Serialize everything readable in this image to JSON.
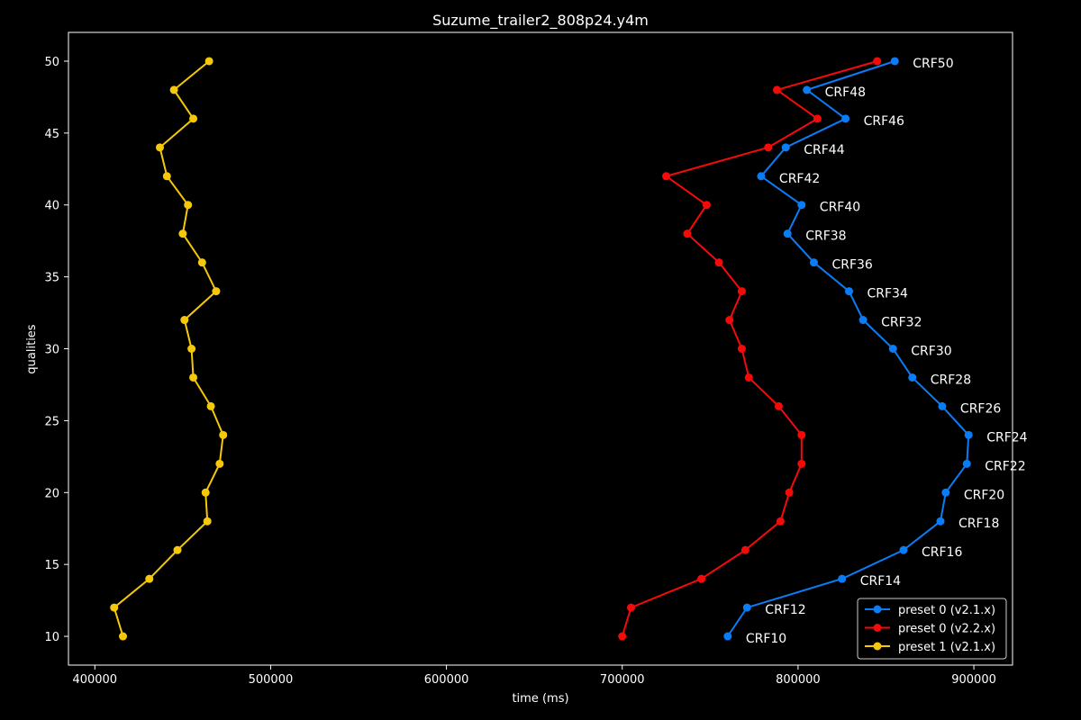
{
  "chart_data": {
    "type": "line",
    "title": "Suzume_trailer2_808p24.y4m",
    "xlabel": "time (ms)",
    "ylabel": "qualities",
    "xlim": [
      385000,
      922000
    ],
    "ylim": [
      8,
      52
    ],
    "xticks": [
      400000,
      500000,
      600000,
      700000,
      800000,
      900000
    ],
    "xtick_labels": [
      "400000",
      "500000",
      "600000",
      "700000",
      "800000",
      "900000"
    ],
    "yticks": [
      10,
      15,
      20,
      25,
      30,
      35,
      40,
      45,
      50
    ],
    "ytick_labels": [
      "10",
      "15",
      "20",
      "25",
      "30",
      "35",
      "40",
      "45",
      "50"
    ],
    "grid": false,
    "legend": "lower-right",
    "annotation_series": 0,
    "series": [
      {
        "name": "preset 0 (v2.1.x)",
        "color": "#0a7cf5",
        "x": [
          760000,
          771000,
          825000,
          860000,
          881000,
          884000,
          896000,
          897000,
          882000,
          865000,
          854000,
          837000,
          829000,
          809000,
          794000,
          802000,
          779000,
          793000,
          827000,
          805000,
          855000
        ],
        "y": [
          10,
          12,
          14,
          16,
          18,
          20,
          22,
          24,
          26,
          28,
          30,
          32,
          34,
          36,
          38,
          40,
          42,
          44,
          46,
          48,
          50
        ],
        "labels": [
          "CRF10",
          "CRF12",
          "CRF14",
          "CRF16",
          "CRF18",
          "CRF20",
          "CRF22",
          "CRF24",
          "CRF26",
          "CRF28",
          "CRF30",
          "CRF32",
          "CRF34",
          "CRF36",
          "CRF38",
          "CRF40",
          "CRF42",
          "CRF44",
          "CRF46",
          "CRF48",
          "CRF50"
        ]
      },
      {
        "name": "preset 0 (v2.2.x)",
        "color": "#f50a0a",
        "x": [
          700000,
          705000,
          745000,
          770000,
          790000,
          795000,
          802000,
          802000,
          789000,
          772000,
          768000,
          761000,
          768000,
          755000,
          737000,
          748000,
          725000,
          783000,
          811000,
          788000,
          845000
        ],
        "y": [
          10,
          12,
          14,
          16,
          18,
          20,
          22,
          24,
          26,
          28,
          30,
          32,
          34,
          36,
          38,
          40,
          42,
          44,
          46,
          48,
          50
        ]
      },
      {
        "name": "preset 1 (v2.1.x)",
        "color": "#f5c80a",
        "x": [
          416000,
          411000,
          431000,
          447000,
          464000,
          463000,
          471000,
          473000,
          466000,
          456000,
          455000,
          451000,
          469000,
          461000,
          450000,
          453000,
          441000,
          437000,
          456000,
          445000,
          465000
        ],
        "y": [
          10,
          12,
          14,
          16,
          18,
          20,
          22,
          24,
          26,
          28,
          30,
          32,
          34,
          36,
          38,
          40,
          42,
          44,
          46,
          48,
          50
        ]
      }
    ]
  }
}
